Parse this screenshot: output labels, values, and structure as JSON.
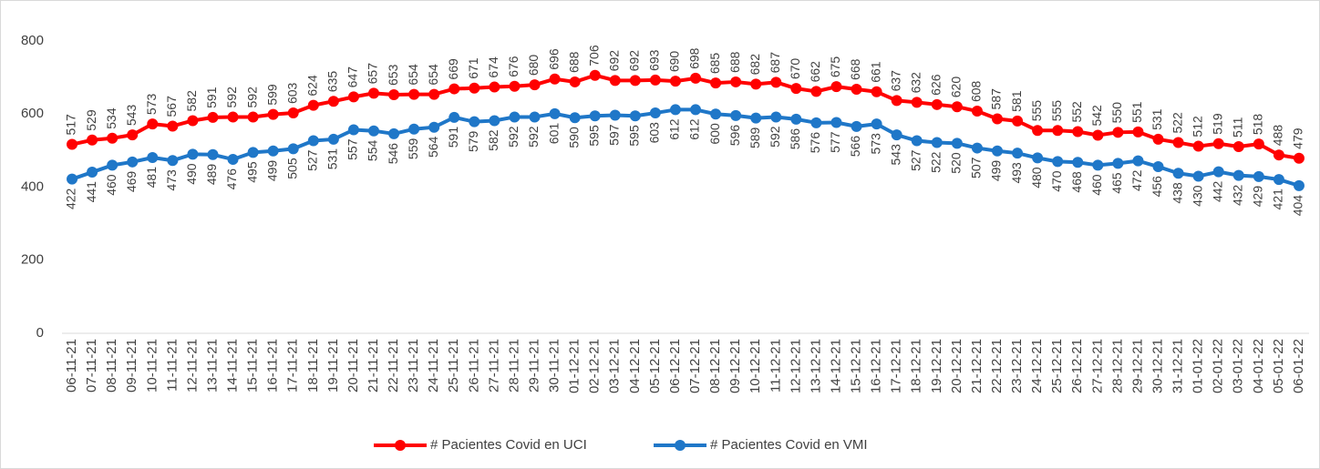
{
  "chart_data": {
    "type": "line",
    "categories": [
      "06-11-21",
      "07-11-21",
      "08-11-21",
      "09-11-21",
      "10-11-21",
      "11-11-21",
      "12-11-21",
      "13-11-21",
      "14-11-21",
      "15-11-21",
      "16-11-21",
      "17-11-21",
      "18-11-21",
      "19-11-21",
      "20-11-21",
      "21-11-21",
      "22-11-21",
      "23-11-21",
      "24-11-21",
      "25-11-21",
      "26-11-21",
      "27-11-21",
      "28-11-21",
      "29-11-21",
      "30-11-21",
      "01-12-21",
      "02-12-21",
      "03-12-21",
      "04-12-21",
      "05-12-21",
      "06-12-21",
      "07-12-21",
      "08-12-21",
      "09-12-21",
      "10-12-21",
      "11-12-21",
      "12-12-21",
      "13-12-21",
      "14-12-21",
      "15-12-21",
      "16-12-21",
      "17-12-21",
      "18-12-21",
      "19-12-21",
      "20-12-21",
      "21-12-21",
      "22-12-21",
      "23-12-21",
      "24-12-21",
      "25-12-21",
      "26-12-21",
      "27-12-21",
      "28-12-21",
      "29-12-21",
      "30-12-21",
      "31-12-21",
      "01-01-22",
      "02-01-22",
      "03-01-22",
      "04-01-22",
      "05-01-22",
      "06-01-22"
    ],
    "series": [
      {
        "name": "# Pacientes Covid en UCI",
        "color": "#ff0000",
        "values": [
          517,
          529,
          534,
          543,
          573,
          567,
          582,
          591,
          592,
          592,
          599,
          603,
          624,
          635,
          647,
          657,
          653,
          654,
          654,
          669,
          671,
          674,
          676,
          680,
          696,
          688,
          706,
          692,
          692,
          693,
          690,
          698,
          685,
          688,
          682,
          687,
          670,
          662,
          675,
          668,
          661,
          637,
          632,
          626,
          620,
          608,
          587,
          581,
          555,
          555,
          552,
          542,
          550,
          551,
          531,
          522,
          512,
          519,
          511,
          518,
          488,
          479
        ]
      },
      {
        "name": "# Pacientes Covid en VMI",
        "color": "#1f77c8",
        "values": [
          422,
          441,
          460,
          469,
          481,
          473,
          490,
          489,
          476,
          495,
          499,
          505,
          527,
          531,
          557,
          554,
          546,
          559,
          564,
          591,
          579,
          582,
          592,
          592,
          601,
          590,
          595,
          597,
          595,
          603,
          612,
          612,
          600,
          596,
          589,
          592,
          586,
          576,
          577,
          566,
          573,
          543,
          527,
          522,
          520,
          507,
          499,
          493,
          480,
          470,
          468,
          460,
          465,
          472,
          456,
          438,
          430,
          442,
          432,
          429,
          421,
          404
        ]
      }
    ],
    "ylim": [
      0,
      800
    ],
    "yticks": [
      0,
      200,
      400,
      600,
      800
    ],
    "grid": false,
    "legend": "bottom"
  }
}
